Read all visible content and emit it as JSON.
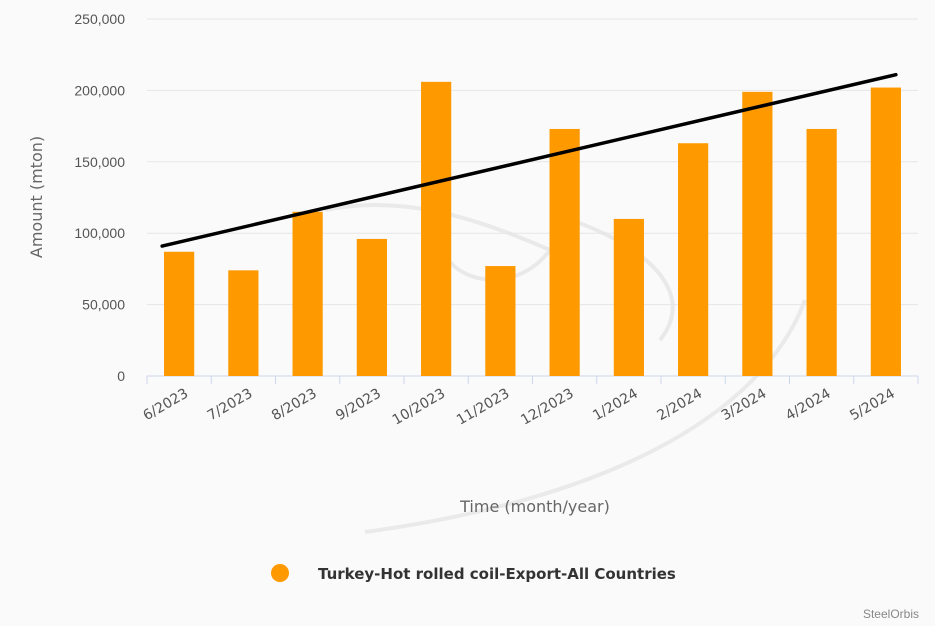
{
  "chart_data": {
    "type": "bar",
    "categories": [
      "6/2023",
      "7/2023",
      "8/2023",
      "9/2023",
      "10/2023",
      "11/2023",
      "12/2023",
      "1/2024",
      "2/2024",
      "3/2024",
      "4/2024",
      "5/2024"
    ],
    "series": [
      {
        "name": "Turkey-Hot rolled coil-Export-All Countries",
        "values": [
          87000,
          74000,
          115000,
          96000,
          206000,
          77000,
          173000,
          110000,
          163000,
          199000,
          173000,
          202000
        ],
        "color": "#ff9900"
      }
    ],
    "trendline": {
      "start_value": 91000,
      "end_value": 211000,
      "color": "#000000"
    },
    "title": "",
    "xlabel": "Time (month/year)",
    "ylabel": "Amount (mton)",
    "ylim": [
      0,
      250000
    ],
    "yticks": [
      0,
      50000,
      100000,
      150000,
      200000,
      250000
    ],
    "ytick_labels": [
      "0",
      "50,000",
      "100,000",
      "150,000",
      "200,000",
      "250,000"
    ],
    "grid": true,
    "legend_position": "bottom-center"
  },
  "credit": "SteelOrbis"
}
